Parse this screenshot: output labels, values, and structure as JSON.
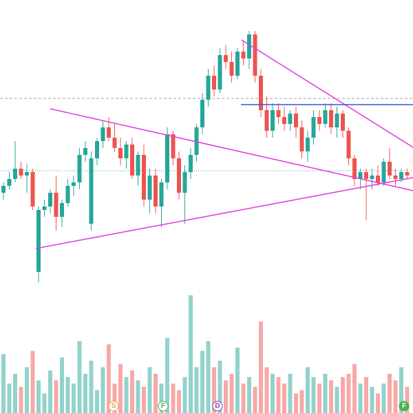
{
  "chart_data": {
    "type": "candlestick",
    "open": [
      320,
      330,
      340,
      355,
      345,
      350,
      205,
      295,
      300,
      320,
      285,
      305,
      330,
      335,
      375,
      275,
      370,
      395,
      415,
      400,
      385,
      370,
      390,
      345,
      375,
      310,
      345,
      300,
      335,
      405,
      370,
      320,
      350,
      375,
      415,
      455,
      490,
      470,
      520,
      510,
      490,
      525,
      515,
      550,
      490,
      440,
      410,
      440,
      430,
      420,
      435,
      415,
      380,
      400,
      430,
      420,
      440,
      415,
      435,
      410,
      370,
      340,
      350,
      340,
      345,
      335,
      365,
      345,
      340,
      350
    ],
    "high": [
      335,
      350,
      395,
      365,
      362,
      355,
      300,
      310,
      325,
      345,
      310,
      340,
      345,
      385,
      395,
      380,
      400,
      425,
      430,
      420,
      400,
      395,
      400,
      380,
      390,
      355,
      355,
      340,
      415,
      410,
      380,
      360,
      385,
      420,
      465,
      500,
      505,
      530,
      535,
      525,
      530,
      540,
      555,
      555,
      500,
      460,
      450,
      450,
      445,
      440,
      445,
      425,
      410,
      440,
      440,
      450,
      450,
      445,
      440,
      415,
      375,
      355,
      355,
      355,
      360,
      370,
      385,
      355,
      355,
      355
    ],
    "low": [
      310,
      325,
      335,
      340,
      320,
      295,
      190,
      285,
      290,
      265,
      270,
      300,
      315,
      325,
      365,
      265,
      360,
      385,
      395,
      380,
      360,
      355,
      340,
      330,
      300,
      290,
      290,
      270,
      325,
      360,
      310,
      275,
      340,
      365,
      405,
      445,
      460,
      465,
      500,
      480,
      485,
      505,
      500,
      480,
      430,
      400,
      400,
      420,
      410,
      410,
      400,
      370,
      365,
      390,
      410,
      415,
      405,
      400,
      400,
      360,
      330,
      325,
      280,
      325,
      330,
      330,
      340,
      330,
      335,
      340
    ],
    "close": [
      330,
      340,
      355,
      345,
      350,
      300,
      295,
      300,
      320,
      285,
      305,
      330,
      335,
      375,
      385,
      370,
      395,
      415,
      400,
      385,
      370,
      390,
      345,
      375,
      310,
      345,
      300,
      335,
      405,
      370,
      320,
      350,
      375,
      415,
      455,
      490,
      470,
      520,
      510,
      490,
      525,
      515,
      550,
      490,
      440,
      410,
      440,
      430,
      420,
      435,
      415,
      380,
      400,
      430,
      420,
      440,
      415,
      435,
      410,
      370,
      340,
      350,
      340,
      345,
      335,
      365,
      345,
      340,
      350,
      345
    ],
    "volume": [
      90,
      45,
      60,
      40,
      70,
      95,
      50,
      30,
      65,
      50,
      85,
      55,
      45,
      110,
      60,
      80,
      35,
      70,
      105,
      45,
      75,
      55,
      65,
      50,
      40,
      70,
      60,
      45,
      115,
      45,
      35,
      55,
      180,
      70,
      95,
      110,
      70,
      80,
      50,
      60,
      100,
      45,
      55,
      40,
      140,
      70,
      60,
      55,
      45,
      60,
      30,
      35,
      70,
      55,
      45,
      60,
      50,
      40,
      55,
      60,
      75,
      45,
      55,
      40,
      30,
      45,
      60,
      50,
      70,
      40
    ],
    "ylim": [
      0,
      600
    ],
    "volume_lim": [
      0,
      200
    ],
    "up_color": "#26a69a",
    "down_color": "#ef5350"
  },
  "events": [
    {
      "label": "S"
    },
    {
      "label": "F"
    },
    {
      "label": "D"
    },
    {
      "label": "F"
    }
  ]
}
